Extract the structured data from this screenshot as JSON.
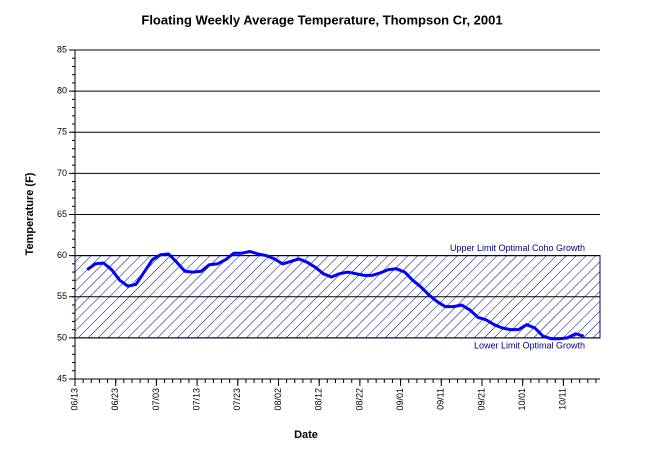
{
  "chart_data": {
    "type": "line",
    "title": "Floating Weekly Average Temperature, Thompson Cr, 2001",
    "x_label": "Date",
    "y_label": "Temperature (F)",
    "x": [
      "06/16",
      "06/18",
      "06/20",
      "06/22",
      "06/24",
      "06/26",
      "06/28",
      "06/30",
      "07/02",
      "07/04",
      "07/06",
      "07/08",
      "07/10",
      "07/12",
      "07/14",
      "07/16",
      "07/18",
      "07/20",
      "07/22",
      "07/24",
      "07/26",
      "07/28",
      "07/30",
      "08/01",
      "08/03",
      "08/05",
      "08/07",
      "08/09",
      "08/11",
      "08/13",
      "08/15",
      "08/17",
      "08/19",
      "08/21",
      "08/23",
      "08/25",
      "08/27",
      "08/29",
      "08/31",
      "09/02",
      "09/04",
      "09/06",
      "09/08",
      "09/10",
      "09/12",
      "09/14",
      "09/16",
      "09/18",
      "09/20",
      "09/22",
      "09/24",
      "09/26",
      "09/28",
      "09/30",
      "10/02",
      "10/04",
      "10/06",
      "10/08",
      "10/10",
      "10/12",
      "10/14",
      "10/16"
    ],
    "series": [
      {
        "name": "Temperature",
        "color": "#0000ff",
        "values": [
          58.3,
          59.0,
          59.1,
          58.3,
          57.0,
          56.3,
          56.5,
          58.0,
          59.5,
          60.1,
          60.2,
          59.2,
          58.1,
          58.0,
          58.1,
          58.9,
          59.0,
          59.5,
          60.3,
          60.3,
          60.5,
          60.2,
          60.0,
          59.6,
          59.0,
          59.3,
          59.6,
          59.2,
          58.6,
          57.8,
          57.4,
          57.8,
          58.0,
          57.8,
          57.6,
          57.6,
          57.9,
          58.3,
          58.4,
          58.0,
          57.0,
          56.2,
          55.2,
          54.4,
          53.8,
          53.8,
          54.0,
          53.4,
          52.5,
          52.2,
          51.6,
          51.2,
          51.0,
          51.0,
          51.6,
          51.2,
          50.2,
          49.9,
          49.9,
          50.0,
          50.5,
          50.2
        ]
      }
    ],
    "xlim": [
      "06/13",
      "10/20"
    ],
    "xticks": [
      "06/13",
      "06/23",
      "07/03",
      "07/13",
      "07/23",
      "08/02",
      "08/12",
      "08/22",
      "09/01",
      "09/11",
      "09/21",
      "10/01",
      "10/11"
    ],
    "ylim": [
      45,
      85
    ],
    "yticks": [
      45,
      50,
      55,
      60,
      65,
      70,
      75,
      80,
      85
    ],
    "grid": true,
    "band": {
      "lower": 50,
      "upper": 60,
      "upper_label": "Upper Limit Optimal Coho Growth",
      "lower_label": "Lower Limit Optimal Growth",
      "color": "#000080"
    }
  }
}
